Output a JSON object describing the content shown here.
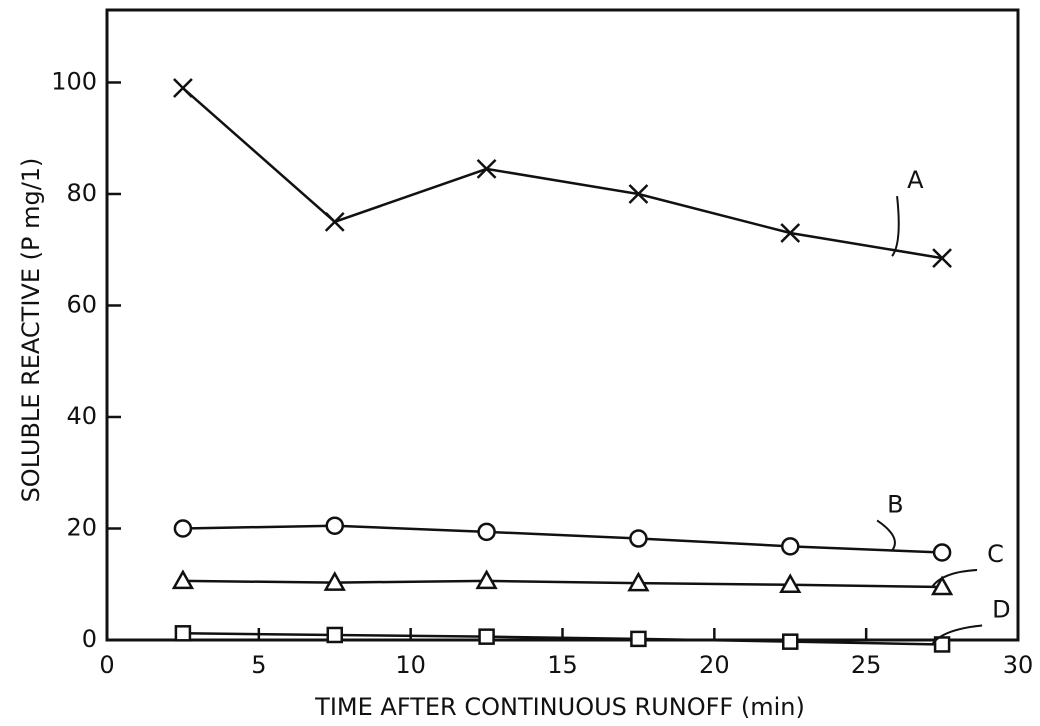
{
  "chart_data": {
    "type": "line",
    "xlabel": "TIME AFTER CONTINUOUS RUNOFF (min)",
    "ylabel": "SOLUBLE REACTIVE (P mg/1)",
    "x": [
      2.5,
      7.5,
      12.5,
      17.5,
      22.5,
      27.5
    ],
    "series": [
      {
        "name": "A",
        "color": "#111111",
        "marker": "x",
        "values": [
          99,
          75,
          84.5,
          80,
          73,
          68.5
        ]
      },
      {
        "name": "B",
        "color": "#111111",
        "marker": "o",
        "values": [
          20,
          20.5,
          19.4,
          18.2,
          16.8,
          15.7
        ]
      },
      {
        "name": "C",
        "color": "#111111",
        "marker": "triangle",
        "values": [
          10.6,
          10.3,
          10.6,
          10.2,
          9.9,
          9.5
        ]
      },
      {
        "name": "D",
        "color": "#111111",
        "marker": "square",
        "values": [
          1.2,
          0.9,
          0.6,
          0.2,
          -0.3,
          -0.8
        ]
      }
    ],
    "xlim": [
      0,
      30
    ],
    "xticks": [
      0,
      5,
      10,
      15,
      20,
      25,
      30
    ],
    "ylim": [
      0,
      113
    ],
    "yticks": [
      0,
      20,
      40,
      60,
      80,
      100
    ]
  }
}
